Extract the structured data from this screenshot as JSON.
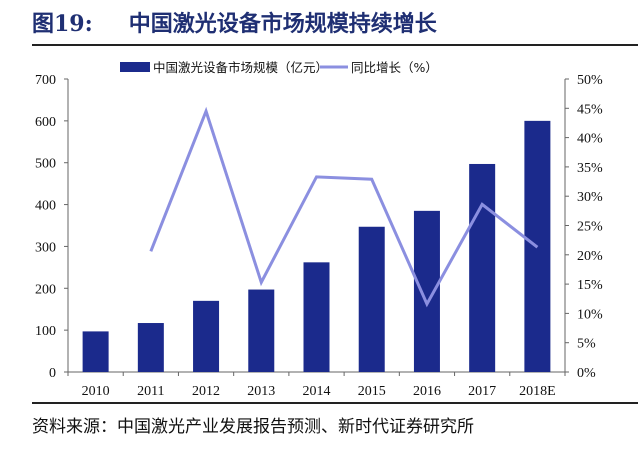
{
  "figure_label": "图19:",
  "title": "中国激光设备市场规模持续增长",
  "source": "资料来源：中国激光产业发展报告预测、新时代证券研究所",
  "chart_data": {
    "type": "bar+line",
    "title": "中国激光设备市场规模持续增长",
    "categories": [
      "2010",
      "2011",
      "2012",
      "2013",
      "2014",
      "2015",
      "2016",
      "2017",
      "2018E"
    ],
    "series": [
      {
        "name": "中国激光设备市场规模（亿元）",
        "type": "bar",
        "axis": "left",
        "color": "#1b2a8c",
        "values": [
          97,
          117,
          170,
          197,
          262,
          347,
          385,
          497,
          600
        ]
      },
      {
        "name": "同比增长（%）",
        "type": "line",
        "axis": "right",
        "color": "#8b8fe0",
        "values": [
          null,
          20.6,
          44.5,
          15.3,
          33.3,
          32.9,
          11.6,
          28.6,
          21.3
        ]
      }
    ],
    "left_axis": {
      "range": [
        0,
        700
      ],
      "ticks": [
        "0",
        "100",
        "200",
        "300",
        "400",
        "500",
        "600",
        "700"
      ]
    },
    "right_axis": {
      "range": [
        0,
        50
      ],
      "ticks": [
        "0%",
        "5%",
        "10%",
        "15%",
        "20%",
        "25%",
        "30%",
        "35%",
        "40%",
        "45%",
        "50%"
      ]
    },
    "legend_position": "top",
    "grid": false
  }
}
